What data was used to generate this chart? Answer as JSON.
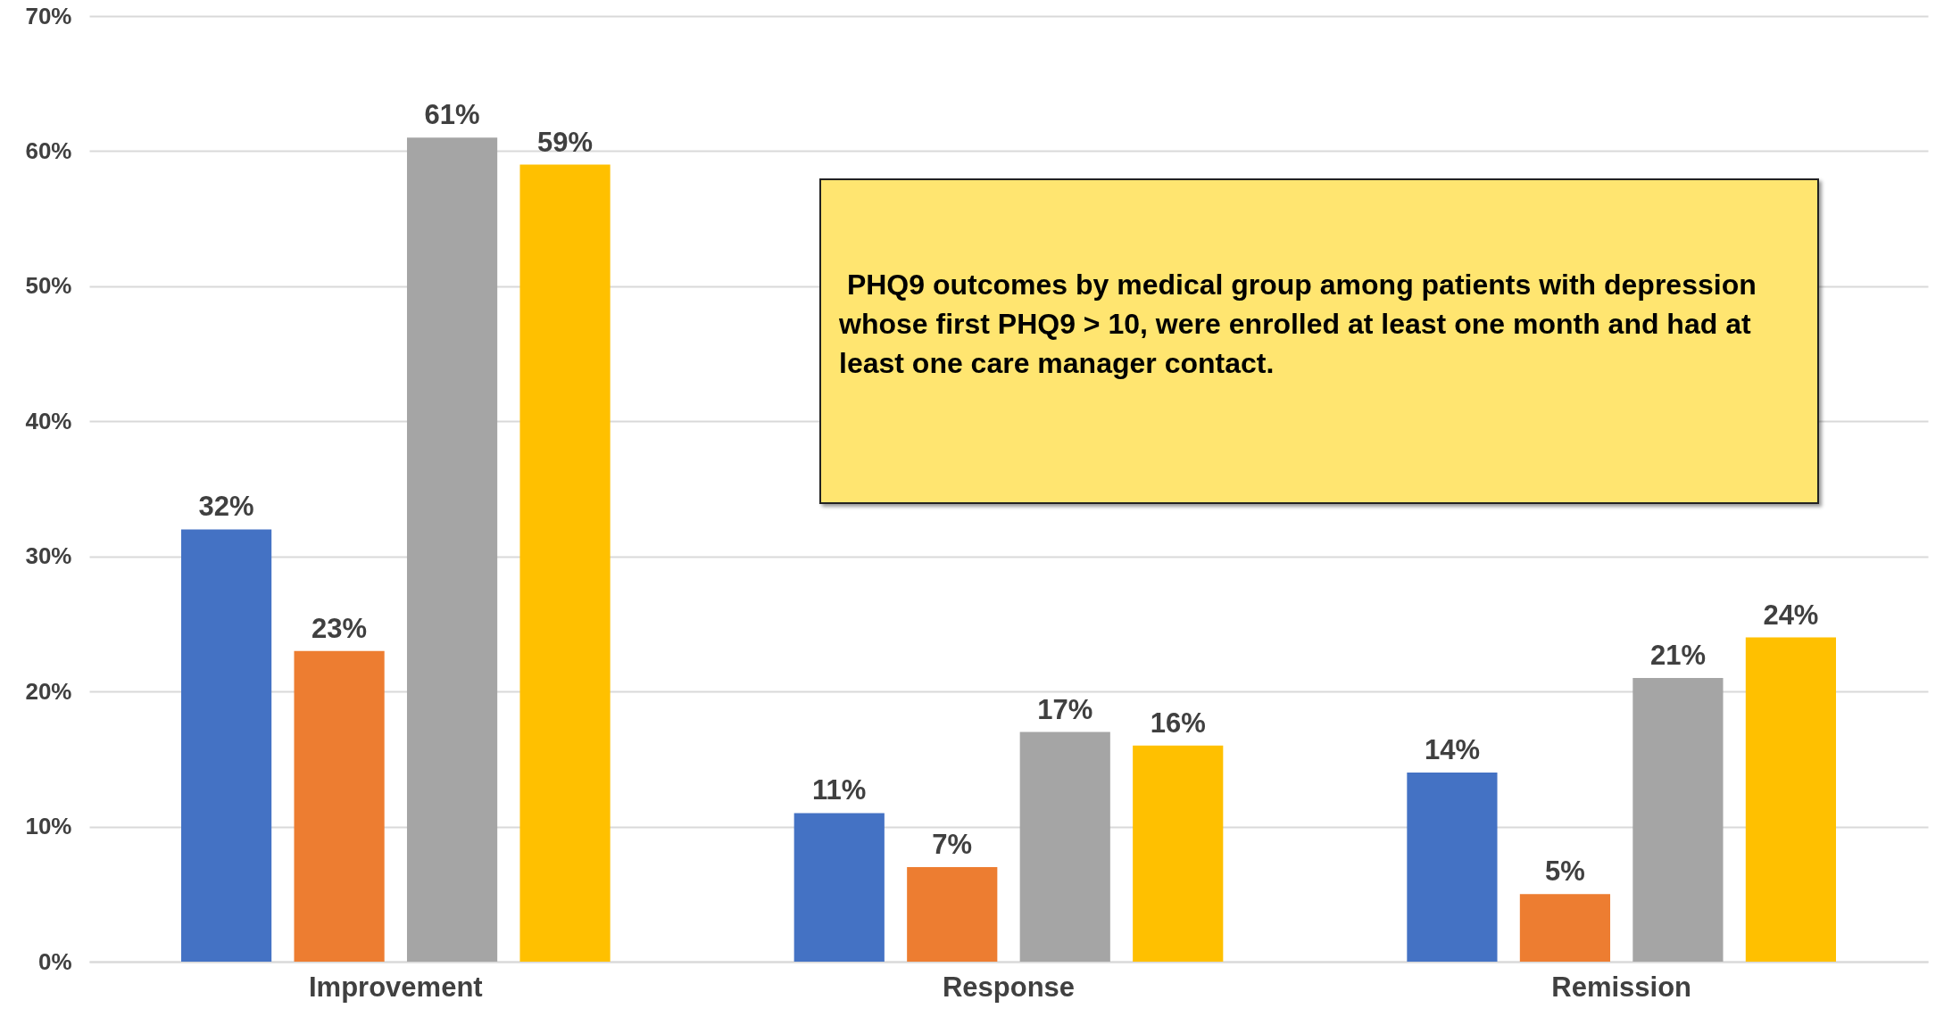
{
  "chart_data": {
    "type": "bar",
    "categories": [
      "Improvement",
      "Response",
      "Remission"
    ],
    "series": [
      {
        "color": "#4472c4",
        "values": [
          32,
          11,
          14
        ],
        "value_labels": [
          "32%",
          "11%",
          "14%"
        ]
      },
      {
        "color": "#ed7d31",
        "values": [
          23,
          7,
          5
        ],
        "value_labels": [
          "23%",
          "7%",
          "5%"
        ]
      },
      {
        "color": "#a5a5a5",
        "values": [
          61,
          17,
          21
        ],
        "value_labels": [
          "61%",
          "17%",
          "21%"
        ]
      },
      {
        "color": "#ffc000",
        "values": [
          59,
          16,
          24
        ],
        "value_labels": [
          "59%",
          "16%",
          "24%"
        ]
      }
    ],
    "ylim": [
      0,
      70
    ],
    "yticks": [
      {
        "value": 0,
        "label": "0%"
      },
      {
        "value": 10,
        "label": "10%"
      },
      {
        "value": 20,
        "label": "20%"
      },
      {
        "value": 30,
        "label": "30%"
      },
      {
        "value": 40,
        "label": "40%"
      },
      {
        "value": 50,
        "label": "50%"
      },
      {
        "value": 60,
        "label": "60%"
      },
      {
        "value": 70,
        "label": "70%"
      }
    ],
    "grid": "y",
    "annotations": [
      " PHQ9 outcomes by medical group among patients with depression whose first PHQ9 > 10, were enrolled at least one month and had at least one care manager contact."
    ]
  }
}
